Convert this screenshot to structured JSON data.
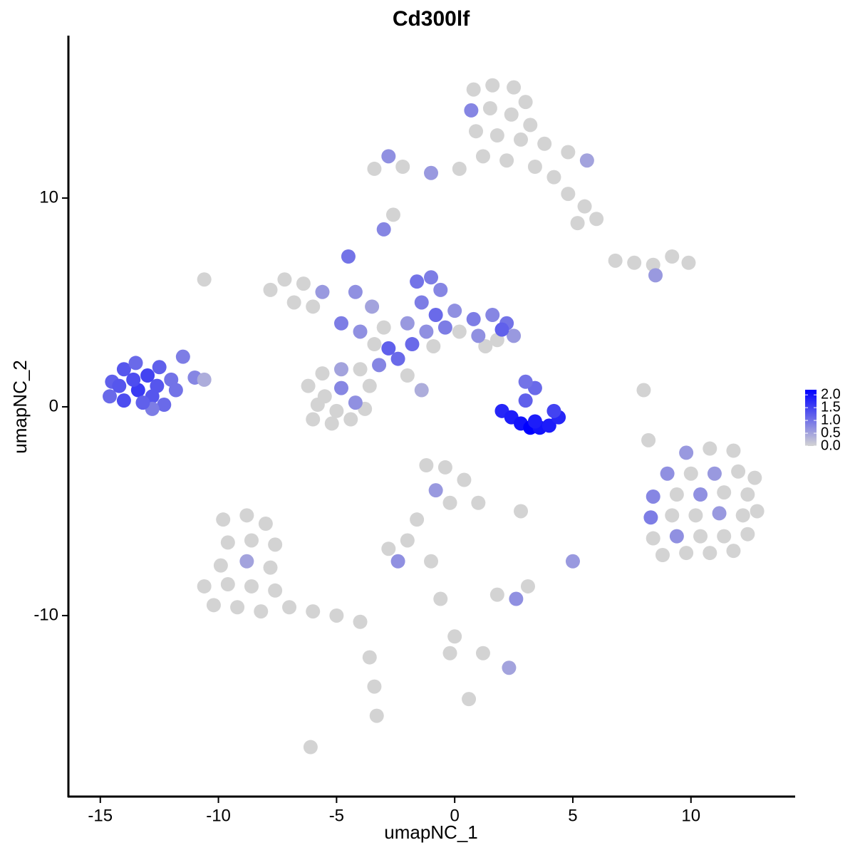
{
  "chart_data": {
    "type": "scatter",
    "title": "Cd300lf",
    "x_label": "umapNC_1",
    "y_label": "umapNC_2",
    "xlim": [
      -16.35,
      14.41
    ],
    "ylim": [
      -18.67,
      17.78
    ],
    "xticks": [
      -15,
      -10,
      -5,
      0,
      5,
      10
    ],
    "yticks": [
      -10,
      0,
      10
    ],
    "colors": [
      "#d3d3d3",
      "#0000ff"
    ],
    "colorlim": [
      0,
      2.2
    ],
    "colorticks": [
      {
        "value": 0,
        "label": "0.0"
      },
      {
        "value": 0.5,
        "label": "0.5"
      },
      {
        "value": 1,
        "label": "1.0"
      },
      {
        "value": 1.5,
        "label": "1.5"
      },
      {
        "value": 2,
        "label": "2.0"
      }
    ],
    "x": [
      -14.5,
      -14,
      -13.5,
      -13,
      -12.5,
      -12,
      -11.5,
      -11,
      -10.6,
      -14.6,
      -14,
      -13.4,
      -12.8,
      -12.3,
      -12.8,
      -13.2,
      -13.6,
      -12.6,
      -11.8,
      -14.2,
      0.8,
      1.6,
      2.5,
      3.0,
      0.7,
      1.5,
      2.4,
      3.2,
      0.9,
      1.8,
      2.8,
      3.8,
      4.8,
      5.6,
      1.2,
      2.2,
      3.4,
      4.2,
      4.8,
      5.5,
      6.0,
      5.2,
      0.2,
      -1.0,
      -2.2,
      -3.4,
      -2.8,
      -3.0,
      -2.6,
      6.8,
      7.6,
      8.4,
      9.2,
      9.9,
      8.5,
      -6.2,
      -5.6,
      -4.8,
      -4.0,
      -3.6,
      -4.2,
      -5.0,
      -5.8,
      -6.0,
      -5.2,
      -4.4,
      -3.8,
      -4.8,
      -5.5,
      -7.8,
      -7.2,
      -6.4,
      -5.6,
      -6.8,
      -6.0,
      -4.8,
      -4.0,
      -3.4,
      -2.8,
      -2.4,
      -3.2,
      -3.5,
      -4.2,
      -4.5,
      -2.0,
      -1.4,
      -3.0,
      -1.6,
      -1.0,
      -0.6,
      -1.4,
      -0.8,
      0,
      0.8,
      1.6,
      2.2,
      2.5,
      1.8,
      1.0,
      0.2,
      -0.4,
      -1.2,
      -2.0,
      -1.8,
      -0.9,
      1.3,
      2.0,
      2.0,
      2.4,
      2.8,
      3.2,
      3.6,
      4.0,
      4.4,
      4.2,
      3.4,
      3.0,
      3.4,
      3.0,
      9.8,
      10.8,
      11.8,
      9.0,
      10.0,
      11.0,
      12.0,
      12.7,
      8.4,
      9.4,
      10.4,
      11.4,
      12.4,
      8.3,
      9.2,
      10.2,
      11.2,
      12.2,
      12.8,
      8.4,
      9.4,
      10.4,
      11.4,
      12.4,
      8.8,
      9.8,
      10.8,
      11.8,
      -9.8,
      -8.8,
      -8.0,
      -9.6,
      -8.6,
      -7.6,
      -9.9,
      -8.8,
      -7.8,
      -10.6,
      -9.6,
      -8.6,
      -7.6,
      -10.2,
      -9.2,
      -8.2,
      -7.0,
      -6.0,
      -5.0,
      -4.0,
      -3.6,
      -3.4,
      -3.3,
      -6.1,
      -1.2,
      -0.4,
      0.4,
      1.0,
      -0.8,
      -0.2,
      -1.6,
      -2.0,
      -2.8,
      -2.4,
      -1.0,
      1.8,
      2.6,
      3.1,
      5.0,
      2.8,
      -0.6,
      0,
      -0.2,
      1.2,
      2.3,
      0.6,
      8.2,
      8.0,
      -10.6
    ],
    "y": [
      1.2,
      1.8,
      2.1,
      1.5,
      1.9,
      1.3,
      2.4,
      1.4,
      1.3,
      0.5,
      0.3,
      0.8,
      0.5,
      0.1,
      -0.1,
      0.2,
      1.3,
      1.0,
      0.8,
      1.0,
      15.2,
      15.4,
      15.3,
      14.6,
      14.2,
      14.3,
      14.0,
      13.5,
      13.2,
      13.0,
      12.8,
      12.6,
      12.2,
      11.8,
      12.0,
      11.8,
      11.5,
      11.0,
      10.2,
      9.6,
      9.0,
      8.8,
      11.4,
      11.2,
      11.5,
      11.4,
      12.0,
      8.5,
      9.2,
      7.0,
      6.9,
      6.8,
      7.2,
      6.9,
      6.3,
      1.0,
      1.6,
      1.8,
      1.8,
      1.0,
      0.2,
      -0.2,
      0.1,
      -0.6,
      -0.8,
      -0.6,
      -0.1,
      0.9,
      0.5,
      5.6,
      6.1,
      5.9,
      5.5,
      5.0,
      4.8,
      4.0,
      3.6,
      3.0,
      2.8,
      2.3,
      2.0,
      4.8,
      5.5,
      7.2,
      1.5,
      0.8,
      3.8,
      6.0,
      6.2,
      5.6,
      5.0,
      4.4,
      4.6,
      4.2,
      4.4,
      4.0,
      3.4,
      3.2,
      3.4,
      3.6,
      3.8,
      3.6,
      4.0,
      3.0,
      2.9,
      2.9,
      3.7,
      -0.2,
      -0.5,
      -0.8,
      -1.0,
      -1.0,
      -0.9,
      -0.5,
      -0.2,
      -0.7,
      0.3,
      0.9,
      1.2,
      -2.2,
      -2.0,
      -2.1,
      -3.2,
      -3.2,
      -3.2,
      -3.1,
      -3.4,
      -4.3,
      -4.2,
      -4.2,
      -4.1,
      -4.2,
      -5.3,
      -5.2,
      -5.2,
      -5.1,
      -5.2,
      -5.0,
      -6.3,
      -6.2,
      -6.2,
      -6.2,
      -6.1,
      -7.1,
      -7.0,
      -7.0,
      -6.9,
      -5.4,
      -5.2,
      -5.6,
      -6.5,
      -6.4,
      -6.6,
      -7.6,
      -7.4,
      -7.7,
      -8.6,
      -8.5,
      -8.6,
      -8.8,
      -9.5,
      -9.6,
      -9.8,
      -9.6,
      -9.8,
      -10.0,
      -10.3,
      -12.0,
      -13.4,
      -14.8,
      -16.3,
      -2.8,
      -2.9,
      -3.5,
      -4.6,
      -4.0,
      -4.6,
      -5.4,
      -6.4,
      -6.8,
      -7.4,
      -7.4,
      -9.0,
      -9.2,
      -8.6,
      -7.4,
      -5.0,
      -9.2,
      -11.0,
      -11.8,
      -11.8,
      -12.5,
      -14.0,
      -1.6,
      0.8,
      6.1
    ],
    "values": [
      1.2,
      1.3,
      1.1,
      1.5,
      1.2,
      1.0,
      0.9,
      0.8,
      0.4,
      1.1,
      1.4,
      1.6,
      1.3,
      1.1,
      0.9,
      1.2,
      1.4,
      1.3,
      1.0,
      1.3,
      0,
      0,
      0,
      0,
      0.8,
      0,
      0,
      0,
      0,
      0,
      0,
      0,
      0,
      0.5,
      0,
      0,
      0,
      0,
      0,
      0,
      0,
      0,
      0,
      0.6,
      0,
      0,
      0.7,
      0.8,
      0,
      0,
      0,
      0,
      0,
      0,
      0.6,
      0,
      0,
      0.5,
      0,
      0,
      0.7,
      0,
      0,
      0,
      0,
      0,
      0,
      0.8,
      0,
      0,
      0,
      0,
      0.6,
      0,
      0,
      0.9,
      0.7,
      0,
      1.2,
      1.1,
      0.8,
      0.5,
      0.7,
      1.0,
      0,
      0.4,
      0,
      1.0,
      0.9,
      0.8,
      0.9,
      1.1,
      0.7,
      0.9,
      0.8,
      1.0,
      0.6,
      0,
      0.7,
      0,
      0.9,
      0.7,
      0.6,
      1.1,
      0,
      0,
      1.2,
      1.8,
      1.9,
      2.0,
      2.2,
      2.0,
      1.9,
      1.8,
      1.5,
      1.9,
      1.2,
      1.1,
      1.0,
      0.6,
      0,
      0,
      0.7,
      0,
      0.6,
      0,
      0,
      0.8,
      0,
      0.7,
      0,
      0,
      0.9,
      0,
      0,
      0.6,
      0,
      0,
      0,
      0.7,
      0,
      0,
      0,
      0,
      0,
      0,
      0,
      0,
      0,
      0,
      0,
      0,
      0,
      0,
      0.5,
      0,
      0,
      0,
      0,
      0,
      0,
      0,
      0,
      0,
      0,
      0,
      0,
      0,
      0,
      0,
      0,
      0,
      0,
      0,
      0,
      0.6,
      0,
      0,
      0,
      0,
      0.7,
      0,
      0,
      0.7,
      0,
      0.6,
      0,
      0,
      0,
      0,
      0,
      0.5,
      0,
      0,
      0,
      0
    ]
  }
}
